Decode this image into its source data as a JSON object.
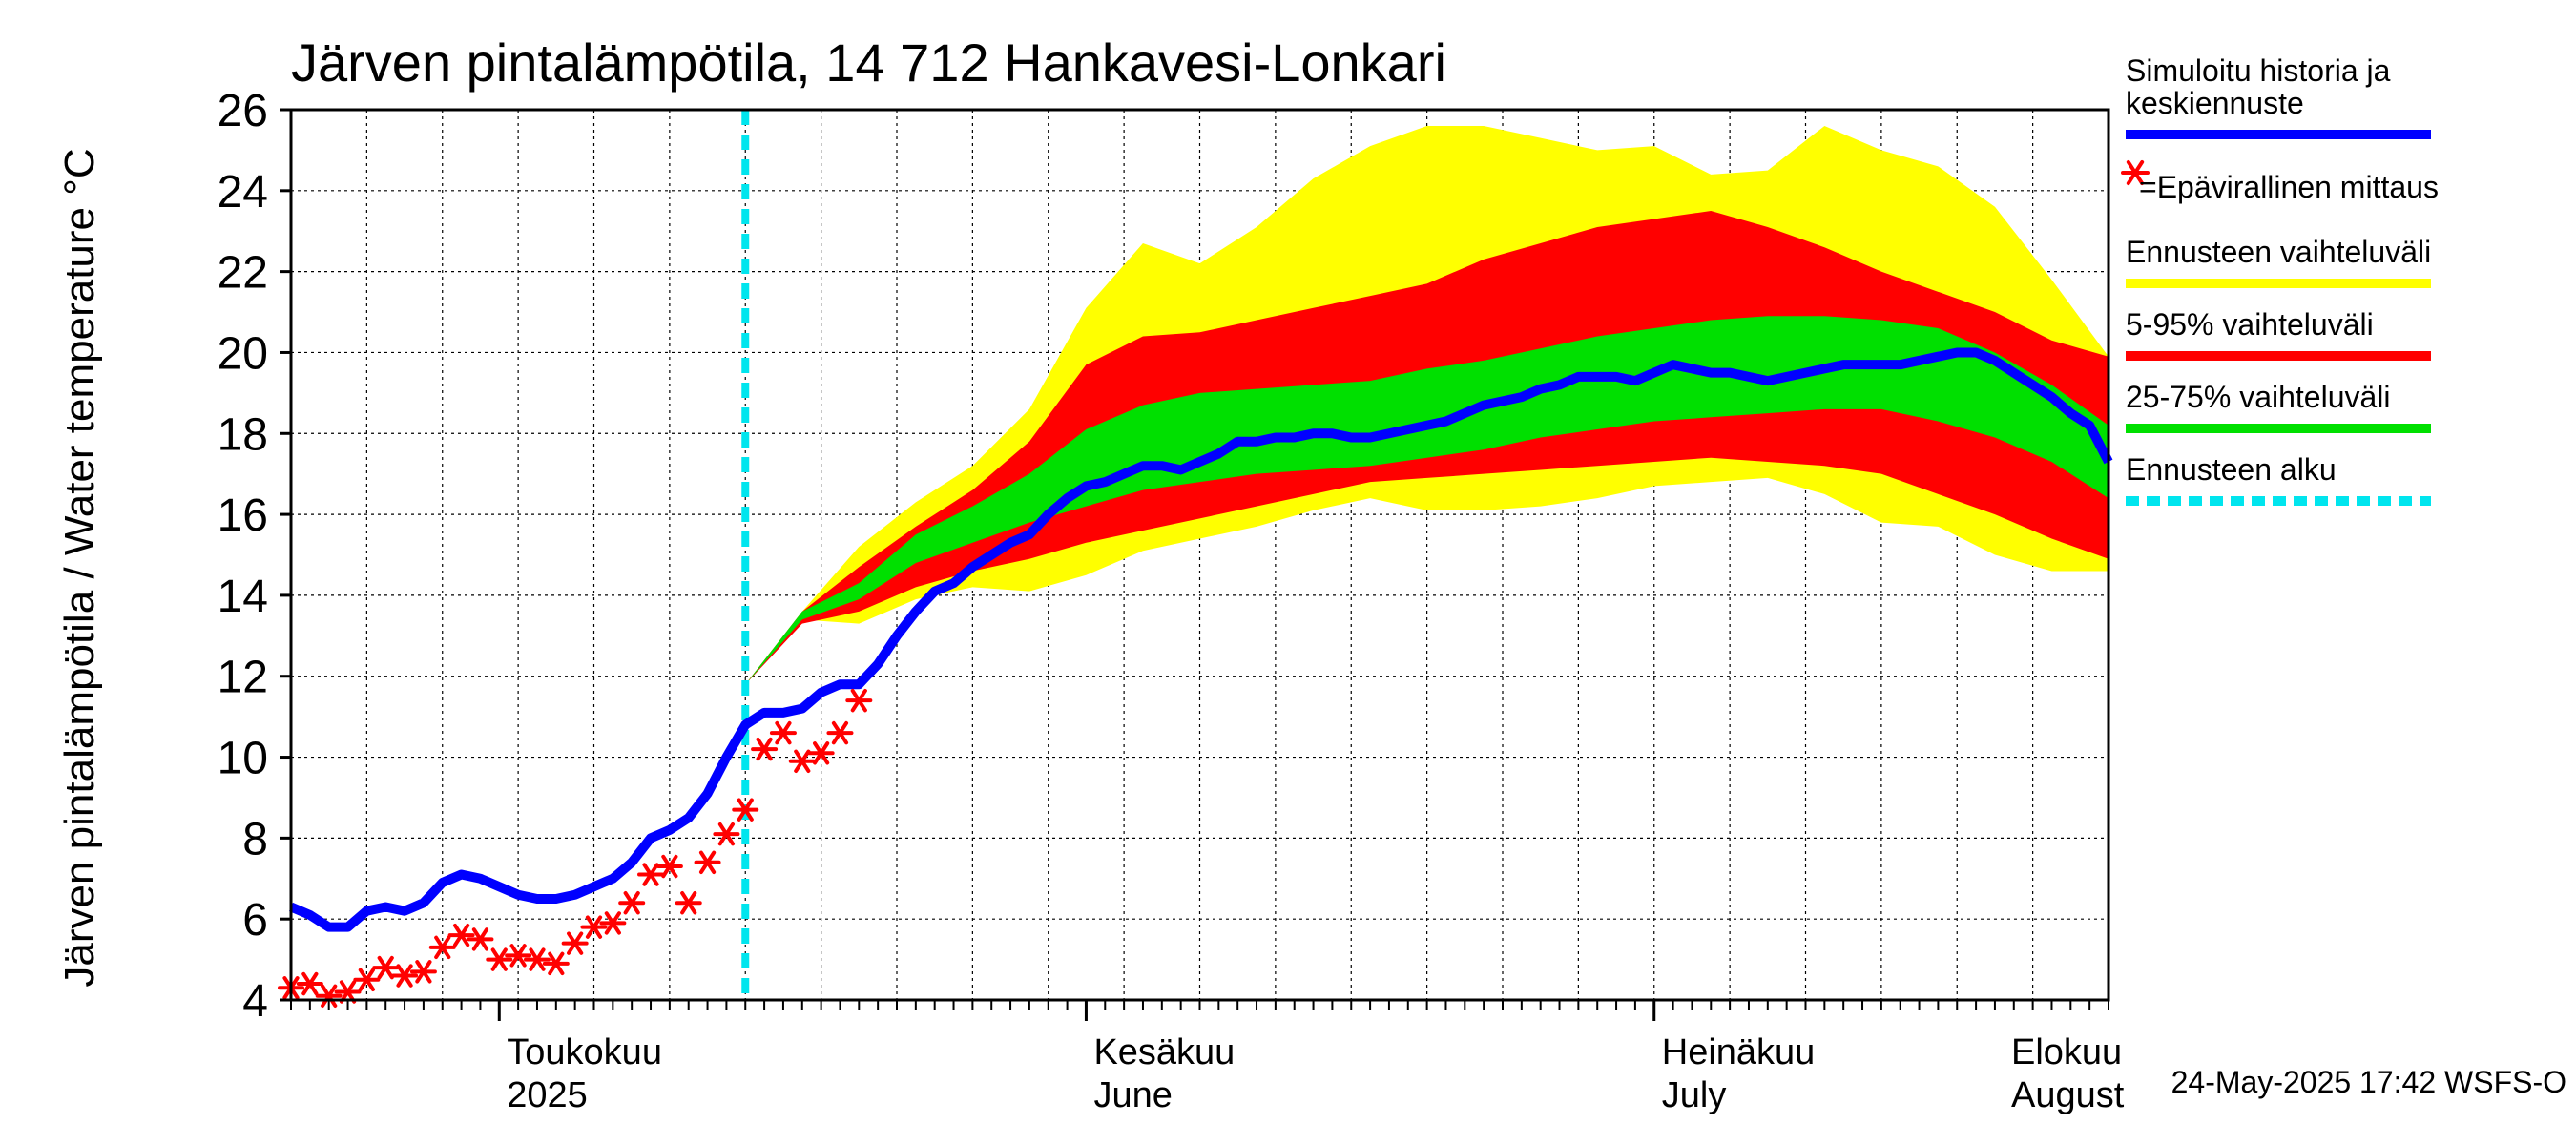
{
  "chart_data": {
    "type": "area",
    "title": "Järven pintalämpötila, 14 712 Hankavesi-Lonkari",
    "ylabel": "Järven pintalämpötila / Water temperature °C",
    "ylim": [
      4,
      26
    ],
    "yticks": [
      "4",
      "6",
      "8",
      "10",
      "12",
      "14",
      "16",
      "18",
      "20",
      "22",
      "24",
      "26"
    ],
    "x_range_days": [
      0,
      96
    ],
    "x_unit": "days since 2025-04-20",
    "forecast_start_day": 24,
    "months": [
      {
        "line1": "Toukokuu",
        "line2": "2025",
        "day": 11
      },
      {
        "line1": "Kesäkuu",
        "line2": "June",
        "day": 42
      },
      {
        "line1": "Heinäkuu",
        "line2": "July",
        "day": 72
      },
      {
        "line1": "Elokuu",
        "line2": "August",
        "day": 103
      }
    ],
    "series": [
      {
        "name": "Simuloitu historia ja keskiennuste",
        "color": "#0000ff",
        "x": [
          0,
          1,
          2,
          3,
          4,
          5,
          6,
          7,
          8,
          9,
          10,
          11,
          12,
          13,
          14,
          15,
          16,
          17,
          18,
          19,
          20,
          21,
          22,
          23,
          24,
          25,
          26,
          27,
          28,
          29,
          30,
          31,
          32,
          33,
          34,
          35,
          36,
          37,
          38,
          39,
          40,
          41,
          42,
          43,
          44,
          45,
          46,
          47,
          48,
          49,
          50,
          51,
          52,
          53,
          54,
          55,
          56,
          57,
          58,
          59,
          60,
          61,
          62,
          63,
          64,
          65,
          66,
          67,
          68,
          69,
          70,
          71,
          72,
          73,
          74,
          75,
          76,
          77,
          78,
          79,
          80,
          81,
          82,
          83,
          84,
          85,
          86,
          87,
          88,
          89,
          90,
          91,
          92,
          93,
          94,
          95,
          96
        ],
        "values": [
          6.3,
          6.1,
          5.8,
          5.8,
          6.2,
          6.3,
          6.2,
          6.4,
          6.9,
          7.1,
          7.0,
          6.8,
          6.6,
          6.5,
          6.5,
          6.6,
          6.8,
          7.0,
          7.4,
          8.0,
          8.2,
          8.5,
          9.1,
          10.0,
          10.8,
          11.1,
          11.1,
          11.2,
          11.6,
          11.8,
          11.8,
          12.3,
          13.0,
          13.6,
          14.1,
          14.3,
          14.7,
          15.0,
          15.3,
          15.5,
          16.0,
          16.4,
          16.7,
          16.8,
          17.0,
          17.2,
          17.2,
          17.1,
          17.3,
          17.5,
          17.8,
          17.8,
          17.9,
          17.9,
          18.0,
          18.0,
          17.9,
          17.9,
          18.0,
          18.1,
          18.2,
          18.3,
          18.5,
          18.7,
          18.8,
          18.9,
          19.1,
          19.2,
          19.4,
          19.4,
          19.4,
          19.3,
          19.5,
          19.7,
          19.6,
          19.5,
          19.5,
          19.4,
          19.3,
          19.4,
          19.5,
          19.6,
          19.7,
          19.7,
          19.7,
          19.7,
          19.8,
          19.9,
          20.0,
          20.0,
          19.8,
          19.5,
          19.2,
          18.9,
          18.5,
          18.2,
          17.3
        ]
      },
      {
        "name": "=Epävirallinen mittaus",
        "color": "#ff0000",
        "marker": "asterisk",
        "x": [
          0,
          1,
          2,
          3,
          4,
          5,
          6,
          7,
          8,
          9,
          10,
          11,
          12,
          13,
          14,
          15,
          16,
          17,
          18,
          19,
          20,
          21,
          22,
          23,
          24,
          25,
          26,
          27,
          28,
          29,
          30
        ],
        "values": [
          4.3,
          4.4,
          4.1,
          4.2,
          4.5,
          4.8,
          4.6,
          4.7,
          5.3,
          5.6,
          5.5,
          5.0,
          5.1,
          5.0,
          4.9,
          5.4,
          5.8,
          5.9,
          6.4,
          7.1,
          7.3,
          6.4,
          7.4,
          8.1,
          8.7,
          10.2,
          10.6,
          9.9,
          10.1,
          10.6,
          11.4
        ]
      }
    ],
    "bands": [
      {
        "name": "Ennusteen vaihteluväli",
        "color": "#ffff00",
        "x": [
          24,
          27,
          30,
          33,
          36,
          39,
          42,
          45,
          48,
          51,
          54,
          57,
          60,
          63,
          66,
          69,
          72,
          75,
          78,
          81,
          84,
          87,
          90,
          93,
          96
        ],
        "upper": [
          11.8,
          13.6,
          15.2,
          16.3,
          17.2,
          18.6,
          21.1,
          22.7,
          22.2,
          23.1,
          24.3,
          25.1,
          25.6,
          25.6,
          25.3,
          25.0,
          25.1,
          24.4,
          24.5,
          25.6,
          25.0,
          24.6,
          23.6,
          21.8,
          19.9
        ],
        "lower": [
          11.8,
          13.4,
          13.3,
          13.9,
          14.2,
          14.1,
          14.5,
          15.1,
          15.4,
          15.7,
          16.1,
          16.4,
          16.1,
          16.1,
          16.2,
          16.4,
          16.7,
          16.8,
          16.9,
          16.5,
          15.8,
          15.7,
          15.0,
          14.6,
          14.6
        ]
      },
      {
        "name": "5-95% vaihteluväli",
        "color": "#ff0000",
        "x": [
          24,
          27,
          30,
          33,
          36,
          39,
          42,
          45,
          48,
          51,
          54,
          57,
          60,
          63,
          66,
          69,
          72,
          75,
          78,
          81,
          84,
          87,
          90,
          93,
          96
        ],
        "upper": [
          11.8,
          13.6,
          14.7,
          15.7,
          16.6,
          17.8,
          19.7,
          20.4,
          20.5,
          20.8,
          21.1,
          21.4,
          21.7,
          22.3,
          22.7,
          23.1,
          23.3,
          23.5,
          23.1,
          22.6,
          22.0,
          21.5,
          21.0,
          20.3,
          19.9
        ],
        "lower": [
          11.8,
          13.3,
          13.6,
          14.2,
          14.6,
          14.9,
          15.3,
          15.6,
          15.9,
          16.2,
          16.5,
          16.8,
          16.9,
          17.0,
          17.1,
          17.2,
          17.3,
          17.4,
          17.3,
          17.2,
          17.0,
          16.5,
          16.0,
          15.4,
          14.9
        ]
      },
      {
        "name": "25-75% vaihteluväli",
        "color": "#00e000",
        "x": [
          24,
          27,
          30,
          33,
          36,
          39,
          42,
          45,
          48,
          51,
          54,
          57,
          60,
          63,
          66,
          69,
          72,
          75,
          78,
          81,
          84,
          87,
          90,
          93,
          96
        ],
        "upper": [
          11.8,
          13.6,
          14.3,
          15.5,
          16.2,
          17.0,
          18.1,
          18.7,
          19.0,
          19.1,
          19.2,
          19.3,
          19.6,
          19.8,
          20.1,
          20.4,
          20.6,
          20.8,
          20.9,
          20.9,
          20.8,
          20.6,
          20.0,
          19.2,
          18.2
        ],
        "lower": [
          11.8,
          13.4,
          13.9,
          14.8,
          15.3,
          15.8,
          16.2,
          16.6,
          16.8,
          17.0,
          17.1,
          17.2,
          17.4,
          17.6,
          17.9,
          18.1,
          18.3,
          18.4,
          18.5,
          18.6,
          18.6,
          18.3,
          17.9,
          17.3,
          16.4
        ]
      }
    ],
    "legend": [
      {
        "label": "Simuloitu historia ja",
        "label2": "keskiennuste",
        "color": "#0000ff",
        "kind": "line"
      },
      {
        "label": "=Epävirallinen mittaus",
        "color": "#ff0000",
        "kind": "marker"
      },
      {
        "label": "Ennusteen vaihteluväli",
        "color": "#ffff00",
        "kind": "line"
      },
      {
        "label": "5-95% vaihteluväli",
        "color": "#ff0000",
        "kind": "line"
      },
      {
        "label": "25-75% vaihteluväli",
        "color": "#00e000",
        "kind": "line"
      },
      {
        "label": "Ennusteen alku",
        "color": "#00e5ee",
        "kind": "dashed"
      }
    ],
    "legend_position": "right",
    "grid": true,
    "forecast_line_color": "#00e5ee"
  },
  "footer": "24-May-2025 17:42 WSFS-O"
}
